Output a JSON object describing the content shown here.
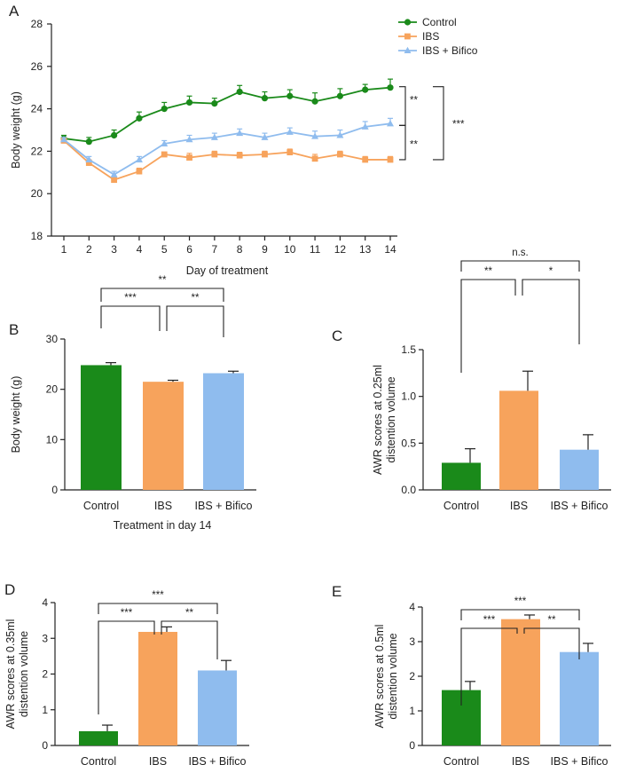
{
  "colors": {
    "control": "#1a8a1a",
    "ibs": "#f7a35c",
    "bifico": "#8fbcee",
    "axis": "#222222"
  },
  "chart_data": [
    {
      "panel": "A",
      "type": "line",
      "xlabel": "Day of treatment",
      "ylabel": "Body weight (g)",
      "xlim": [
        1,
        14
      ],
      "ylim": [
        18,
        28
      ],
      "yticks": [
        "18",
        "20",
        "22",
        "24",
        "26",
        "28"
      ],
      "xticks": [
        "1",
        "2",
        "3",
        "4",
        "5",
        "6",
        "7",
        "8",
        "9",
        "10",
        "11",
        "12",
        "13",
        "14"
      ],
      "legend_position": "top-right",
      "series": [
        {
          "name": "Control",
          "color": "#1a8a1a",
          "marker": "circle",
          "x": [
            1,
            2,
            3,
            4,
            5,
            6,
            7,
            8,
            9,
            10,
            11,
            12,
            13,
            14
          ],
          "values": [
            22.6,
            22.45,
            22.75,
            23.55,
            24.0,
            24.3,
            24.25,
            24.8,
            24.5,
            24.6,
            24.35,
            24.6,
            24.9,
            25.0
          ],
          "err": [
            0.15,
            0.2,
            0.25,
            0.3,
            0.3,
            0.3,
            0.25,
            0.3,
            0.3,
            0.3,
            0.4,
            0.35,
            0.25,
            0.4
          ]
        },
        {
          "name": "IBS",
          "color": "#f7a35c",
          "marker": "square",
          "x": [
            1,
            2,
            3,
            4,
            5,
            6,
            7,
            8,
            9,
            10,
            11,
            12,
            13,
            14
          ],
          "values": [
            22.5,
            21.45,
            20.65,
            21.05,
            21.85,
            21.7,
            21.85,
            21.8,
            21.85,
            21.95,
            21.65,
            21.85,
            21.6,
            21.6
          ],
          "err": [
            0.1,
            0.15,
            0.1,
            0.15,
            0.1,
            0.2,
            0.15,
            0.15,
            0.15,
            0.15,
            0.2,
            0.15,
            0.15,
            0.15
          ]
        },
        {
          "name": "IBS + Bifico",
          "color": "#8fbcee",
          "marker": "triangle",
          "x": [
            1,
            2,
            3,
            4,
            5,
            6,
            7,
            8,
            9,
            10,
            11,
            12,
            13,
            14
          ],
          "values": [
            22.55,
            21.6,
            20.9,
            21.6,
            22.35,
            22.55,
            22.65,
            22.85,
            22.65,
            22.9,
            22.7,
            22.75,
            23.15,
            23.3
          ],
          "err": [
            0.1,
            0.15,
            0.15,
            0.15,
            0.15,
            0.2,
            0.2,
            0.2,
            0.2,
            0.2,
            0.25,
            0.25,
            0.25,
            0.25
          ]
        }
      ],
      "annotations": [
        "**",
        "**",
        "***"
      ]
    },
    {
      "panel": "B",
      "type": "bar",
      "categories": [
        "Control",
        "IBS",
        "IBS + Bifico"
      ],
      "values": [
        24.8,
        21.5,
        23.2
      ],
      "err": [
        0.5,
        0.3,
        0.4
      ],
      "ylabel": "Body weight (g)",
      "xlabel": "Treatment in day 14",
      "ylim": [
        0,
        30
      ],
      "yticks": [
        "0",
        "10",
        "20",
        "30"
      ],
      "comparisons": [
        {
          "pair": [
            0,
            1
          ],
          "label": "***"
        },
        {
          "pair": [
            1,
            2
          ],
          "label": "**"
        },
        {
          "pair": [
            0,
            2
          ],
          "label": "**"
        }
      ]
    },
    {
      "panel": "C",
      "type": "bar",
      "categories": [
        "Control",
        "IBS",
        "IBS + Bifico"
      ],
      "values": [
        0.29,
        1.06,
        0.43
      ],
      "err": [
        0.15,
        0.21,
        0.16
      ],
      "ylabel_lines": [
        "AWR scores at 0.25ml",
        "distention volume"
      ],
      "xlabel": "",
      "ylim": [
        0,
        1.5
      ],
      "yticks": [
        "0.0",
        "0.5",
        "1.0",
        "1.5"
      ],
      "comparisons": [
        {
          "pair": [
            0,
            1
          ],
          "label": "**"
        },
        {
          "pair": [
            1,
            2
          ],
          "label": "*"
        },
        {
          "pair": [
            0,
            2
          ],
          "label": "n.s."
        }
      ]
    },
    {
      "panel": "D",
      "type": "bar",
      "categories": [
        "Control",
        "IBS",
        "IBS + Bifico"
      ],
      "values": [
        0.4,
        3.18,
        2.1
      ],
      "err": [
        0.17,
        0.14,
        0.28
      ],
      "ylabel_lines": [
        "AWR scores at 0.35ml",
        "distention volume"
      ],
      "xlabel": "",
      "ylim": [
        0,
        4
      ],
      "yticks": [
        "0",
        "1",
        "2",
        "3",
        "4"
      ],
      "comparisons": [
        {
          "pair": [
            0,
            1
          ],
          "label": "***"
        },
        {
          "pair": [
            1,
            2
          ],
          "label": "**"
        },
        {
          "pair": [
            0,
            2
          ],
          "label": "***"
        }
      ]
    },
    {
      "panel": "E",
      "type": "bar",
      "categories": [
        "Control",
        "IBS",
        "IBS + Bifico"
      ],
      "values": [
        1.6,
        3.65,
        2.7
      ],
      "err": [
        0.25,
        0.12,
        0.25
      ],
      "ylabel_lines": [
        "AWR scores at 0.5ml",
        "distention volume"
      ],
      "xlabel": "",
      "ylim": [
        0,
        4
      ],
      "yticks": [
        "0",
        "1",
        "2",
        "3",
        "4"
      ],
      "comparisons": [
        {
          "pair": [
            0,
            1
          ],
          "label": "***"
        },
        {
          "pair": [
            1,
            2
          ],
          "label": "**"
        },
        {
          "pair": [
            0,
            2
          ],
          "label": "***"
        }
      ]
    }
  ]
}
